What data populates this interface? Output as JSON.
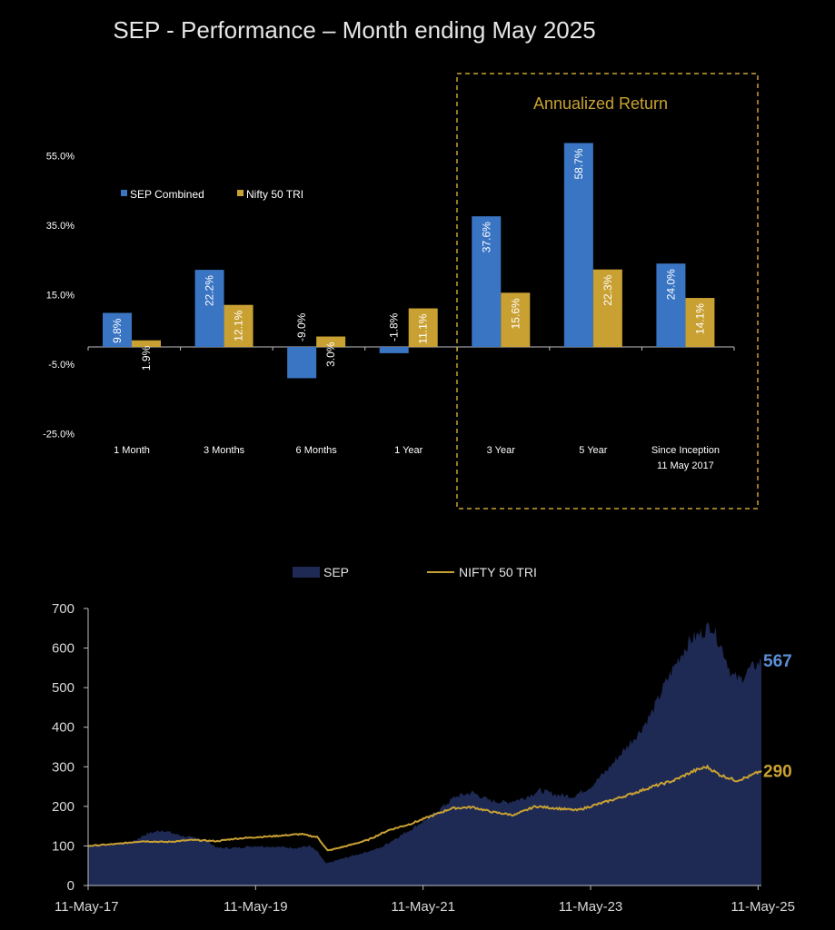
{
  "page": {
    "title": "SEP - Performance – Month ending May 2025"
  },
  "colors": {
    "sep": "#3a75c4",
    "nifty": "#c9a133",
    "area": "#1e2a54",
    "box": "#c9a133",
    "end_sep": "#5b8fd6"
  },
  "chart_data": [
    {
      "type": "bar",
      "categories": [
        "1 Month",
        "3 Months",
        "6 Months",
        "1 Year",
        "3 Year",
        "5 Year",
        "Since Inception 11 May 2017"
      ],
      "category_lines": [
        [
          "1 Month"
        ],
        [
          "3 Months"
        ],
        [
          "6 Months"
        ],
        [
          "1 Year"
        ],
        [
          "3 Year"
        ],
        [
          "5 Year"
        ],
        [
          "Since Inception",
          "11 May 2017"
        ]
      ],
      "series": [
        {
          "name": "SEP Combined",
          "values": [
            9.8,
            22.2,
            -9.0,
            -1.8,
            37.6,
            58.7,
            24.0
          ],
          "labels": [
            "9.8%",
            "22.2%",
            "-9.0%",
            "-1.8%",
            "37.6%",
            "58.7%",
            "24.0%"
          ]
        },
        {
          "name": "Nifty 50 TRI",
          "values": [
            1.9,
            12.1,
            3.0,
            11.1,
            15.6,
            22.3,
            14.1
          ],
          "labels": [
            "1.9%",
            "12.1%",
            "3.0%",
            "11.1%",
            "15.6%",
            "22.3%",
            "14.1%"
          ]
        }
      ],
      "yticks": [
        55,
        35,
        15,
        -5,
        -25
      ],
      "ytick_labels": [
        "55.0%",
        "35.0%",
        "15.0%",
        "-5.0%",
        "-25.0%"
      ],
      "ylim": [
        -25,
        55
      ],
      "legend_position": "top-left",
      "annotation": {
        "text": "Annualized Return",
        "covers": [
          "3 Year",
          "5 Year",
          "Since Inception 11 May 2017"
        ]
      }
    },
    {
      "type": "area",
      "series_labels": [
        "SEP",
        "NIFTY 50 TRI"
      ],
      "x_tick_labels": [
        "11-May-17",
        "11-May-19",
        "11-May-21",
        "11-May-23",
        "11-May-25"
      ],
      "x_ticks": [
        2017.36,
        2019.36,
        2021.36,
        2023.36,
        2025.36
      ],
      "xlim": [
        2017.36,
        2025.4
      ],
      "ylim": [
        0,
        700
      ],
      "yticks": [
        0,
        100,
        200,
        300,
        400,
        500,
        600,
        700
      ],
      "ytick_labels": [
        "0",
        "100",
        "200",
        "300",
        "400",
        "500",
        "600",
        "700"
      ],
      "legend_position": "top-center",
      "end_labels": {
        "sep": "567",
        "nifty": "290"
      },
      "sep_points": [
        [
          2017.36,
          100
        ],
        [
          2017.6,
          102
        ],
        [
          2017.9,
          112
        ],
        [
          2018.05,
          130
        ],
        [
          2018.25,
          140
        ],
        [
          2018.4,
          130
        ],
        [
          2018.6,
          120
        ],
        [
          2018.75,
          118
        ],
        [
          2018.9,
          95
        ],
        [
          2019.1,
          95
        ],
        [
          2019.36,
          100
        ],
        [
          2019.6,
          98
        ],
        [
          2019.85,
          95
        ],
        [
          2020.0,
          100
        ],
        [
          2020.1,
          85
        ],
        [
          2020.2,
          55
        ],
        [
          2020.35,
          65
        ],
        [
          2020.6,
          80
        ],
        [
          2020.85,
          95
        ],
        [
          2021.0,
          115
        ],
        [
          2021.2,
          140
        ],
        [
          2021.45,
          175
        ],
        [
          2021.6,
          200
        ],
        [
          2021.75,
          225
        ],
        [
          2021.95,
          235
        ],
        [
          2022.15,
          215
        ],
        [
          2022.35,
          210
        ],
        [
          2022.55,
          220
        ],
        [
          2022.75,
          240
        ],
        [
          2022.95,
          230
        ],
        [
          2023.15,
          225
        ],
        [
          2023.36,
          250
        ],
        [
          2023.55,
          290
        ],
        [
          2023.75,
          340
        ],
        [
          2023.95,
          390
        ],
        [
          2024.1,
          440
        ],
        [
          2024.25,
          510
        ],
        [
          2024.4,
          570
        ],
        [
          2024.55,
          620
        ],
        [
          2024.7,
          640
        ],
        [
          2024.8,
          660
        ],
        [
          2024.95,
          590
        ],
        [
          2025.05,
          530
        ],
        [
          2025.15,
          520
        ],
        [
          2025.25,
          545
        ],
        [
          2025.4,
          567
        ]
      ],
      "nifty_points": [
        [
          2017.36,
          100
        ],
        [
          2017.7,
          105
        ],
        [
          2018.0,
          112
        ],
        [
          2018.3,
          110
        ],
        [
          2018.6,
          115
        ],
        [
          2018.9,
          112
        ],
        [
          2019.1,
          118
        ],
        [
          2019.36,
          122
        ],
        [
          2019.6,
          125
        ],
        [
          2019.9,
          130
        ],
        [
          2020.1,
          122
        ],
        [
          2020.22,
          88
        ],
        [
          2020.45,
          100
        ],
        [
          2020.7,
          115
        ],
        [
          2020.95,
          140
        ],
        [
          2021.2,
          155
        ],
        [
          2021.45,
          175
        ],
        [
          2021.7,
          195
        ],
        [
          2021.95,
          198
        ],
        [
          2022.2,
          185
        ],
        [
          2022.45,
          178
        ],
        [
          2022.7,
          200
        ],
        [
          2022.95,
          195
        ],
        [
          2023.2,
          190
        ],
        [
          2023.36,
          200
        ],
        [
          2023.6,
          215
        ],
        [
          2023.9,
          235
        ],
        [
          2024.1,
          250
        ],
        [
          2024.35,
          265
        ],
        [
          2024.6,
          290
        ],
        [
          2024.75,
          300
        ],
        [
          2024.9,
          280
        ],
        [
          2025.1,
          265
        ],
        [
          2025.25,
          275
        ],
        [
          2025.4,
          290
        ]
      ]
    }
  ]
}
